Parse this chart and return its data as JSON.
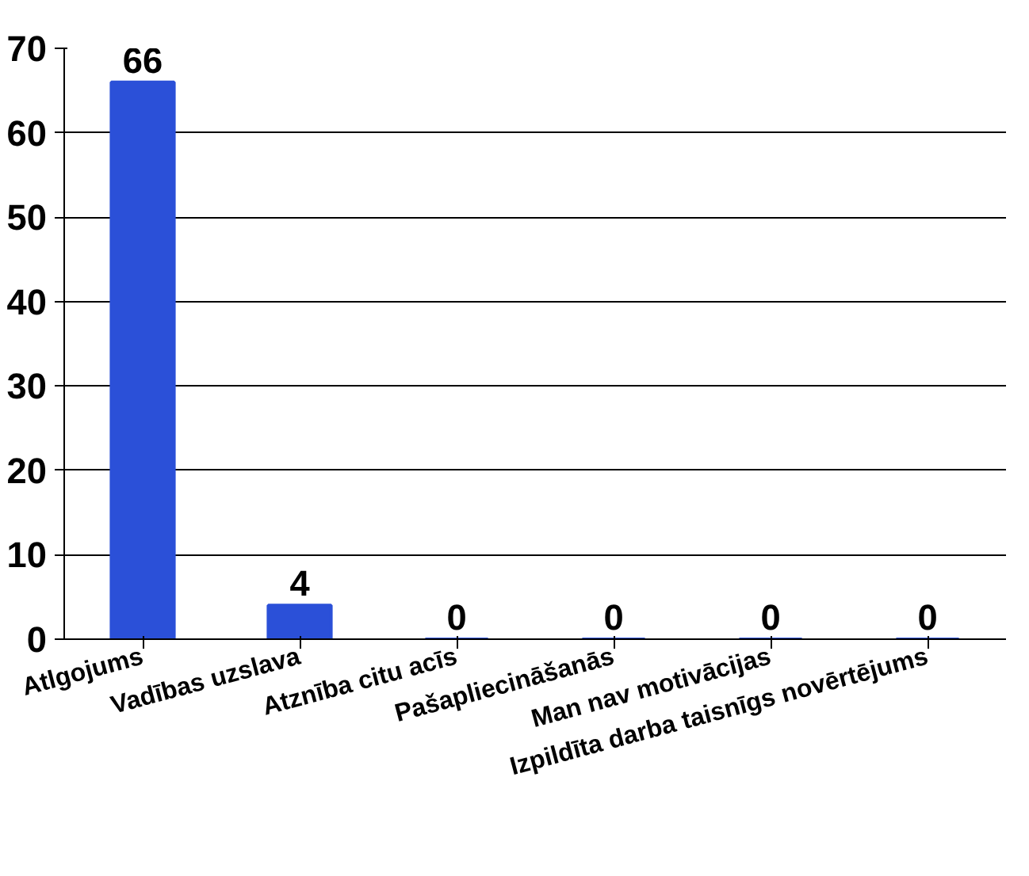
{
  "chart_data": {
    "type": "bar",
    "categories": [
      "Atlgojums",
      "Vadības uzslava",
      "Atznība citu acīs",
      "Pašapliecināšanās",
      "Man nav motivācijas",
      "Izpildīta darba taisnīgs novērtējums"
    ],
    "values": [
      66,
      4,
      0,
      0,
      0,
      0
    ],
    "color": "#2b50d8",
    "ylim": [
      0,
      70
    ],
    "yticks": [
      0,
      10,
      20,
      30,
      40,
      50,
      60,
      70
    ],
    "grid": "y",
    "data_labels": true
  }
}
